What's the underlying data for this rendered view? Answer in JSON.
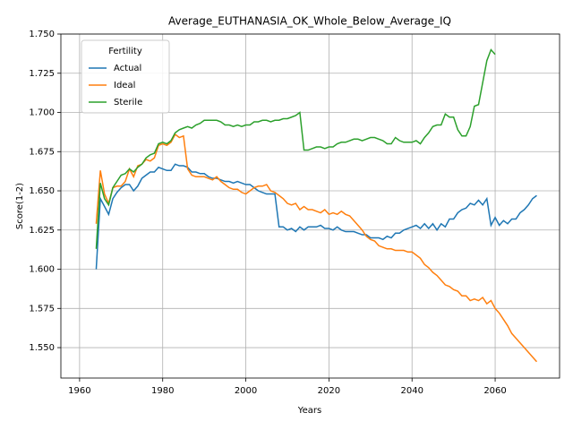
{
  "chart_data": {
    "type": "line",
    "title": "Average_EUTHANASIA_OK_Whole_Below_Average_IQ",
    "x_label": "Years",
    "y_label": "Score(1-2)",
    "legend_title": "Fertility",
    "legend_loc": "upper left",
    "grid": true,
    "x": [
      1964,
      1965,
      1966,
      1967,
      1968,
      1969,
      1970,
      1971,
      1972,
      1973,
      1974,
      1975,
      1976,
      1977,
      1978,
      1979,
      1980,
      1981,
      1982,
      1983,
      1984,
      1985,
      1986,
      1987,
      1988,
      1989,
      1990,
      1991,
      1992,
      1993,
      1994,
      1995,
      1996,
      1997,
      1998,
      1999,
      2000,
      2001,
      2002,
      2003,
      2004,
      2005,
      2006,
      2007,
      2008,
      2009,
      2010,
      2011,
      2012,
      2013,
      2014,
      2015,
      2016,
      2017,
      2018,
      2019,
      2020,
      2021,
      2022,
      2023,
      2024,
      2025,
      2026,
      2027,
      2028,
      2029,
      2030,
      2031,
      2032,
      2033,
      2034,
      2035,
      2036,
      2037,
      2038,
      2039,
      2040,
      2041,
      2042,
      2043,
      2044,
      2045,
      2046,
      2047,
      2048,
      2049,
      2050,
      2051,
      2052,
      2053,
      2054,
      2055,
      2056,
      2057,
      2058,
      2059,
      2060,
      2061,
      2062,
      2063,
      2064,
      2065,
      2066,
      2067,
      2068,
      2069,
      2070
    ],
    "series": [
      {
        "name": "Actual",
        "color": "#1f77b4",
        "values": [
          1.6,
          1.645,
          1.64,
          1.635,
          1.645,
          1.649,
          1.652,
          1.654,
          1.654,
          1.65,
          1.653,
          1.658,
          1.66,
          1.662,
          1.662,
          1.665,
          1.664,
          1.663,
          1.663,
          1.667,
          1.666,
          1.666,
          1.665,
          1.662,
          1.662,
          1.661,
          1.661,
          1.659,
          1.658,
          1.658,
          1.657,
          1.656,
          1.656,
          1.655,
          1.656,
          1.655,
          1.654,
          1.654,
          1.652,
          1.65,
          1.649,
          1.648,
          1.648,
          1.648,
          1.627,
          1.627,
          1.625,
          1.626,
          1.624,
          1.627,
          1.625,
          1.627,
          1.627,
          1.627,
          1.628,
          1.626,
          1.626,
          1.625,
          1.627,
          1.625,
          1.624,
          1.624,
          1.624,
          1.623,
          1.622,
          1.622,
          1.62,
          1.62,
          1.62,
          1.619,
          1.621,
          1.62,
          1.623,
          1.623,
          1.625,
          1.626,
          1.627,
          1.628,
          1.626,
          1.629,
          1.626,
          1.629,
          1.625,
          1.629,
          1.627,
          1.632,
          1.632,
          1.636,
          1.638,
          1.639,
          1.642,
          1.641,
          1.644,
          1.641,
          1.645,
          1.628,
          1.633,
          1.628,
          1.631,
          1.629,
          1.632,
          1.632,
          1.636,
          1.638,
          1.641,
          1.645,
          1.647
        ]
      },
      {
        "name": "Ideal",
        "color": "#ff7f0e",
        "values": [
          1.629,
          1.663,
          1.648,
          1.642,
          1.652,
          1.653,
          1.653,
          1.656,
          1.664,
          1.659,
          1.666,
          1.667,
          1.67,
          1.669,
          1.671,
          1.679,
          1.68,
          1.679,
          1.681,
          1.686,
          1.684,
          1.685,
          1.664,
          1.66,
          1.659,
          1.659,
          1.659,
          1.658,
          1.657,
          1.659,
          1.656,
          1.654,
          1.652,
          1.651,
          1.651,
          1.649,
          1.648,
          1.65,
          1.652,
          1.653,
          1.653,
          1.654,
          1.65,
          1.649,
          1.647,
          1.645,
          1.642,
          1.641,
          1.642,
          1.638,
          1.64,
          1.638,
          1.638,
          1.637,
          1.636,
          1.638,
          1.635,
          1.636,
          1.635,
          1.637,
          1.635,
          1.634,
          1.631,
          1.628,
          1.625,
          1.621,
          1.619,
          1.618,
          1.615,
          1.614,
          1.613,
          1.613,
          1.612,
          1.612,
          1.612,
          1.611,
          1.611,
          1.609,
          1.607,
          1.603,
          1.601,
          1.598,
          1.596,
          1.593,
          1.59,
          1.589,
          1.587,
          1.586,
          1.583,
          1.583,
          1.58,
          1.581,
          1.58,
          1.582,
          1.578,
          1.58,
          1.575,
          1.572,
          1.568,
          1.564,
          1.559,
          1.556,
          1.553,
          1.55,
          1.547,
          1.544,
          1.541
        ]
      },
      {
        "name": "Sterile",
        "color": "#2ca02c",
        "values": [
          1.613,
          1.655,
          1.645,
          1.641,
          1.652,
          1.656,
          1.66,
          1.661,
          1.664,
          1.662,
          1.665,
          1.667,
          1.671,
          1.673,
          1.674,
          1.68,
          1.681,
          1.68,
          1.682,
          1.687,
          1.689,
          1.69,
          1.691,
          1.69,
          1.692,
          1.693,
          1.695,
          1.695,
          1.695,
          1.695,
          1.694,
          1.692,
          1.692,
          1.691,
          1.692,
          1.691,
          1.692,
          1.692,
          1.694,
          1.694,
          1.695,
          1.695,
          1.694,
          1.695,
          1.695,
          1.696,
          1.696,
          1.697,
          1.698,
          1.7,
          1.676,
          1.676,
          1.677,
          1.678,
          1.678,
          1.677,
          1.678,
          1.678,
          1.68,
          1.681,
          1.681,
          1.682,
          1.683,
          1.683,
          1.682,
          1.683,
          1.684,
          1.684,
          1.683,
          1.682,
          1.68,
          1.68,
          1.684,
          1.682,
          1.681,
          1.681,
          1.681,
          1.682,
          1.68,
          1.684,
          1.687,
          1.691,
          1.692,
          1.692,
          1.699,
          1.697,
          1.697,
          1.689,
          1.685,
          1.685,
          1.691,
          1.704,
          1.705,
          1.719,
          1.733,
          1.74,
          1.737,
          null,
          null,
          null,
          null,
          null,
          null,
          null,
          null,
          null,
          null
        ]
      }
    ],
    "xlim": [
      1955.5,
      2075.5
    ],
    "xticks": [
      1960,
      1980,
      2000,
      2020,
      2040,
      2060
    ],
    "ylim": [
      1.5306,
      1.75
    ],
    "yticks": [
      {
        "value": 1.55,
        "label": "1.550"
      },
      {
        "value": 1.575,
        "label": "1.575"
      },
      {
        "value": 1.6,
        "label": "1.600"
      },
      {
        "value": 1.625,
        "label": "1.625"
      },
      {
        "value": 1.65,
        "label": "1.650"
      },
      {
        "value": 1.675,
        "label": "1.675"
      },
      {
        "value": 1.7,
        "label": "1.700"
      },
      {
        "value": 1.725,
        "label": "1.725"
      },
      {
        "value": 1.75,
        "label": "1.750"
      }
    ]
  }
}
